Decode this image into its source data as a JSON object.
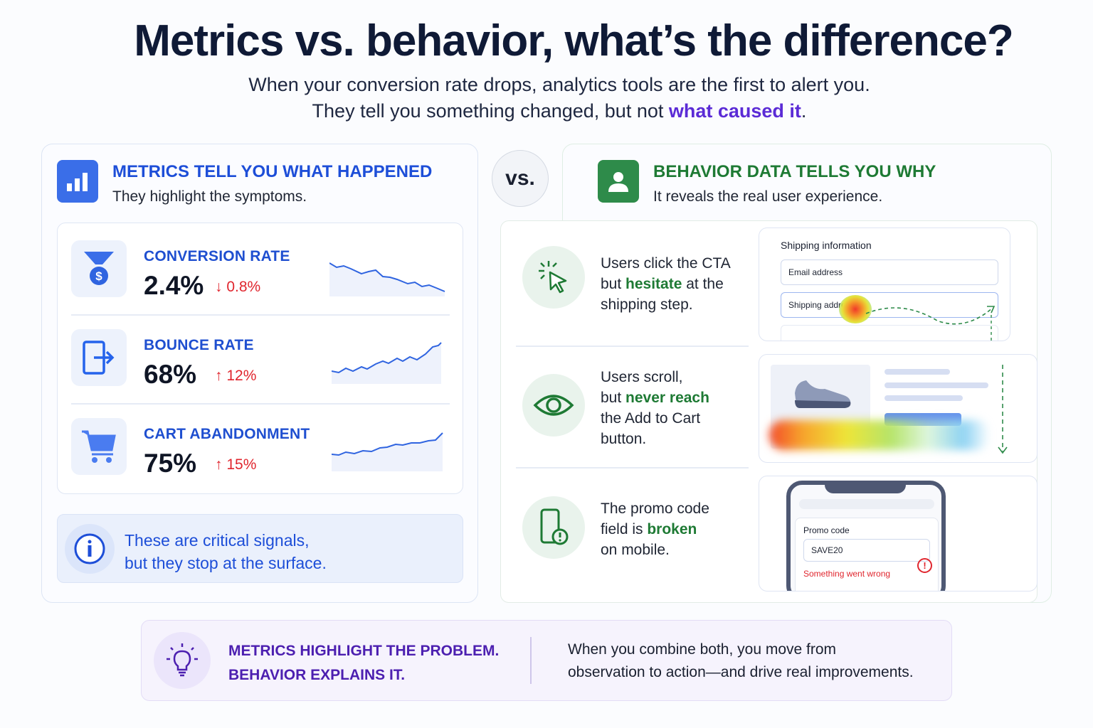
{
  "header": {
    "title": "Metrics vs. behavior, what’s the difference?",
    "subtitle_line1": "When your conversion rate drops, analytics tools are the first to alert you.",
    "subtitle_line2_prefix": "They tell you something changed, but not ",
    "subtitle_line2_highlight": "what caused it",
    "subtitle_line2_suffix": "."
  },
  "metrics_panel": {
    "heading": "METRICS TELL YOU WHAT HAPPENED",
    "subheading": "They highlight the symptoms.",
    "items": [
      {
        "label": "CONVERSION RATE",
        "value": "2.4%",
        "delta": "↓ 0.8%",
        "icon": "funnel-dollar-icon"
      },
      {
        "label": "BOUNCE RATE",
        "value": "68%",
        "delta": "↑ 12%",
        "icon": "exit-door-icon"
      },
      {
        "label": "CART ABANDONMENT",
        "value": "75%",
        "delta": "↑ 15%",
        "icon": "cart-icon"
      }
    ],
    "info_line1": "These are critical signals,",
    "info_line2": "but they stop at the surface."
  },
  "vs_label": "vs.",
  "behavior_panel": {
    "heading": "BEHAVIOR DATA TELLS YOU WHY",
    "subheading": "It reveals the real user experience.",
    "rows": [
      {
        "parts": [
          "Users click the CTA",
          "but ",
          "hesitate",
          " at the",
          "shipping step."
        ]
      },
      {
        "parts": [
          "Users scroll,",
          "but ",
          "never reach",
          "the Add to Cart",
          "button."
        ]
      },
      {
        "parts": [
          "The promo code",
          "field is ",
          "broken",
          "on mobile."
        ]
      }
    ],
    "mock_shipping": {
      "title": "Shipping information",
      "field1": "Email address",
      "field2": "Shipping address"
    },
    "mock_promo": {
      "label": "Promo code",
      "value": "SAVE20",
      "error": "Something went wrong"
    }
  },
  "footer": {
    "left_line1": "METRICS HIGHLIGHT THE PROBLEM.",
    "left_line2": "BEHAVIOR EXPLAINS IT.",
    "right_line1": "When you combine both, you move from",
    "right_line2": "observation to action—and drive real improvements."
  },
  "colors": {
    "blue": "#1f4fd0",
    "green": "#1e7a34",
    "purple": "#5b2bd6",
    "red": "#e0262e"
  }
}
